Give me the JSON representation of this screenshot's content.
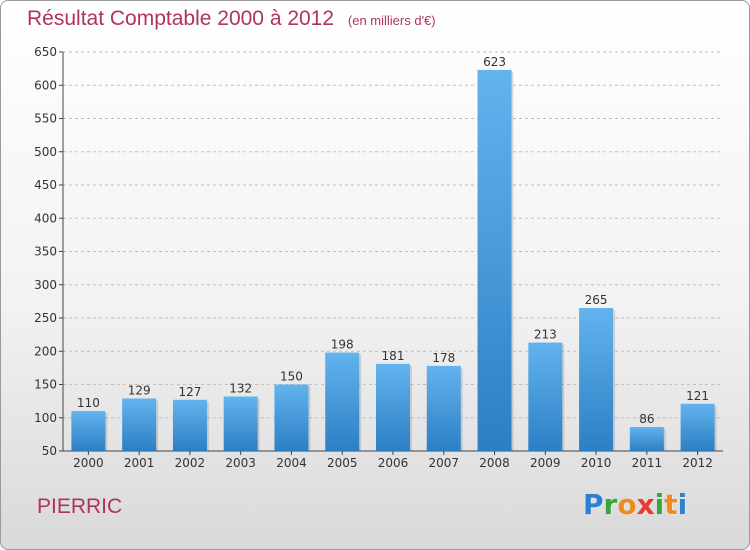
{
  "header": {
    "title": "Résultat Comptable 2000 à 2012",
    "unit": "(en milliers d'€)"
  },
  "footer": {
    "commune": "PIERRIC",
    "logo_letters": [
      {
        "char": "P",
        "color": "#2f7fd3"
      },
      {
        "char": "r",
        "color": "#35a83d"
      },
      {
        "char": "o",
        "color": "#f08a1c"
      },
      {
        "char": "x",
        "color": "#e83b2f"
      },
      {
        "char": "i",
        "color": "#35a83d"
      },
      {
        "char": "t",
        "color": "#f08a1c"
      },
      {
        "char": "i",
        "color": "#2f7fd3"
      }
    ]
  },
  "colors": {
    "title": "#b0335f",
    "bar_top": "#62b3ee",
    "bar_bottom": "#2c7fc4",
    "grid": "#bfbfbf",
    "axis": "#444444"
  },
  "chart_data": {
    "type": "bar",
    "title": "Résultat Comptable 2000 à 2012",
    "xlabel": "",
    "ylabel": "",
    "ylim": [
      50,
      650
    ],
    "yticks": [
      50,
      100,
      150,
      200,
      250,
      300,
      350,
      400,
      450,
      500,
      550,
      600,
      650
    ],
    "grid": true,
    "categories": [
      "2000",
      "2001",
      "2002",
      "2003",
      "2004",
      "2005",
      "2006",
      "2007",
      "2008",
      "2009",
      "2010",
      "2011",
      "2012"
    ],
    "values": [
      110,
      129,
      127,
      132,
      150,
      198,
      181,
      178,
      623,
      213,
      265,
      86,
      121
    ]
  }
}
